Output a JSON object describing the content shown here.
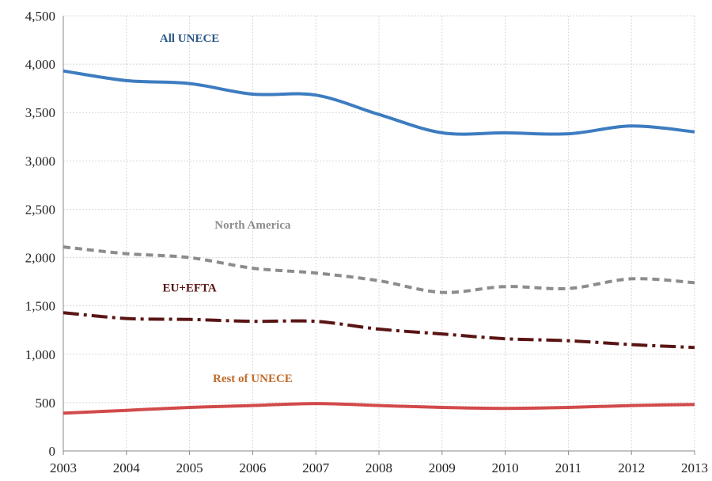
{
  "chart_data": {
    "type": "line",
    "title": "",
    "xlabel": "",
    "ylabel": "",
    "x": [
      "2003",
      "2004",
      "2005",
      "2006",
      "2007",
      "2008",
      "2009",
      "2010",
      "2011",
      "2012",
      "2013"
    ],
    "ylim": [
      0,
      4500
    ],
    "yticks": [
      0,
      500,
      1000,
      1500,
      2000,
      2500,
      3000,
      3500,
      4000,
      4500
    ],
    "ytick_labels": [
      "0",
      "500",
      "1,000",
      "1,500",
      "2,000",
      "2,500",
      "3,000",
      "3,500",
      "4,000",
      "4,500"
    ],
    "grid": true,
    "legend": "none (series labelled directly on plot)",
    "series": [
      {
        "name": "All UNECE",
        "color": "#3d7cc0",
        "style": "solid",
        "values": [
          3930,
          3830,
          3800,
          3690,
          3680,
          3480,
          3290,
          3290,
          3280,
          3360,
          3300
        ]
      },
      {
        "name": "North America",
        "color": "#8c8c8c",
        "style": "dashed",
        "values": [
          2110,
          2040,
          2000,
          1890,
          1840,
          1760,
          1640,
          1700,
          1680,
          1780,
          1740
        ]
      },
      {
        "name": "EU+EFTA",
        "color": "#5a1414",
        "style": "dash-dot",
        "values": [
          1430,
          1370,
          1360,
          1340,
          1340,
          1260,
          1210,
          1160,
          1140,
          1100,
          1070
        ]
      },
      {
        "name": "Rest of UNECE",
        "color": "#d24a4a",
        "style": "solid",
        "values": [
          390,
          420,
          450,
          470,
          490,
          470,
          450,
          440,
          450,
          470,
          480
        ]
      }
    ],
    "labels": [
      {
        "text": "All UNECE",
        "color": "#2f5a8a",
        "x_ref": "2005",
        "y_ref": 4230
      },
      {
        "text": "North America",
        "color": "#8c8c8c",
        "x_ref": "2006",
        "y_ref": 2300
      },
      {
        "text": "EU+EFTA",
        "color": "#5a1414",
        "x_ref": "2005",
        "y_ref": 1650
      },
      {
        "text": "Rest of UNECE",
        "color": "#c06a2a",
        "x_ref": "2006",
        "y_ref": 710
      }
    ]
  }
}
